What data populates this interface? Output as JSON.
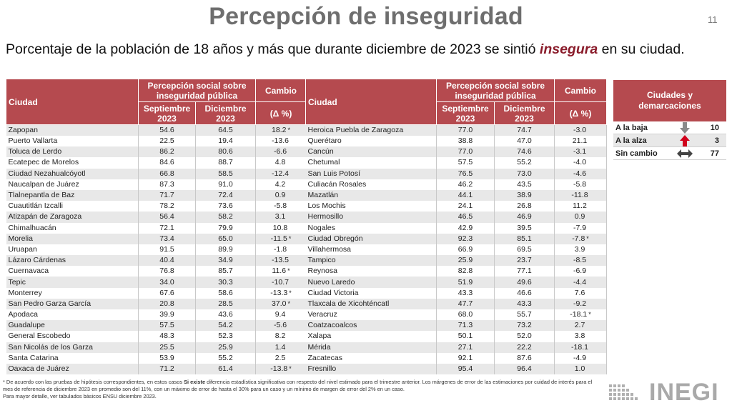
{
  "title": "Percepción de inseguridad",
  "page_number": "11",
  "subtitle": {
    "before": "Porcentaje de la población de 18 años y más que durante diciembre de 2023 se sintió ",
    "highlight": "insegura",
    "after": " en su ciudad."
  },
  "table_headers": {
    "city": "Ciudad",
    "perception_group": "Percepción social sobre inseguridad pública",
    "september": "Septiembre 2023",
    "december": "Diciembre 2023",
    "change": "Cambio",
    "change_unit": "(Δ %)"
  },
  "left_rows": [
    {
      "city": "Zapopan",
      "sep": "54.6",
      "dec": "64.5",
      "change": "18.2",
      "sig": "*"
    },
    {
      "city": "Puerto Vallarta",
      "sep": "22.5",
      "dec": "19.4",
      "change": "-13.6",
      "sig": ""
    },
    {
      "city": "Toluca de Lerdo",
      "sep": "86.2",
      "dec": "80.6",
      "change": "-6.6",
      "sig": ""
    },
    {
      "city": "Ecatepec de Morelos",
      "sep": "84.6",
      "dec": "88.7",
      "change": "4.8",
      "sig": ""
    },
    {
      "city": "Ciudad Nezahualcóyotl",
      "sep": "66.8",
      "dec": "58.5",
      "change": "-12.4",
      "sig": ""
    },
    {
      "city": "Naucalpan de Juárez",
      "sep": "87.3",
      "dec": "91.0",
      "change": "4.2",
      "sig": ""
    },
    {
      "city": "Tlalnepantla de Baz",
      "sep": "71.7",
      "dec": "72.4",
      "change": "0.9",
      "sig": ""
    },
    {
      "city": "Cuautitlán Izcalli",
      "sep": "78.2",
      "dec": "73.6",
      "change": "-5.8",
      "sig": ""
    },
    {
      "city": "Atizapán de Zaragoza",
      "sep": "56.4",
      "dec": "58.2",
      "change": "3.1",
      "sig": ""
    },
    {
      "city": "Chimalhuacán",
      "sep": "72.1",
      "dec": "79.9",
      "change": "10.8",
      "sig": ""
    },
    {
      "city": "Morelia",
      "sep": "73.4",
      "dec": "65.0",
      "change": "-11.5",
      "sig": "*"
    },
    {
      "city": "Uruapan",
      "sep": "91.5",
      "dec": "89.9",
      "change": "-1.8",
      "sig": ""
    },
    {
      "city": "Lázaro Cárdenas",
      "sep": "40.4",
      "dec": "34.9",
      "change": "-13.5",
      "sig": ""
    },
    {
      "city": "Cuernavaca",
      "sep": "76.8",
      "dec": "85.7",
      "change": "11.6",
      "sig": "*"
    },
    {
      "city": "Tepic",
      "sep": "34.0",
      "dec": "30.3",
      "change": "-10.7",
      "sig": ""
    },
    {
      "city": "Monterrey",
      "sep": "67.6",
      "dec": "58.6",
      "change": "-13.3",
      "sig": "*"
    },
    {
      "city": "San Pedro Garza García",
      "sep": "20.8",
      "dec": "28.5",
      "change": "37.0",
      "sig": "*"
    },
    {
      "city": "Apodaca",
      "sep": "39.9",
      "dec": "43.6",
      "change": "9.4",
      "sig": ""
    },
    {
      "city": "Guadalupe",
      "sep": "57.5",
      "dec": "54.2",
      "change": "-5.6",
      "sig": ""
    },
    {
      "city": "General Escobedo",
      "sep": "48.3",
      "dec": "52.3",
      "change": "8.2",
      "sig": ""
    },
    {
      "city": "San Nicolás de los Garza",
      "sep": "25.5",
      "dec": "25.9",
      "change": "1.4",
      "sig": ""
    },
    {
      "city": "Santa Catarina",
      "sep": "53.9",
      "dec": "55.2",
      "change": "2.5",
      "sig": ""
    },
    {
      "city": "Oaxaca de Juárez",
      "sep": "71.2",
      "dec": "61.4",
      "change": "-13.8",
      "sig": "*"
    }
  ],
  "right_rows": [
    {
      "city": "Heroica Puebla de Zaragoza",
      "sep": "77.0",
      "dec": "74.7",
      "change": "-3.0",
      "sig": ""
    },
    {
      "city": "Querétaro",
      "sep": "38.8",
      "dec": "47.0",
      "change": "21.1",
      "sig": ""
    },
    {
      "city": "Cancún",
      "sep": "77.0",
      "dec": "74.6",
      "change": "-3.1",
      "sig": ""
    },
    {
      "city": "Chetumal",
      "sep": "57.5",
      "dec": "55.2",
      "change": "-4.0",
      "sig": ""
    },
    {
      "city": "San Luis Potosí",
      "sep": "76.5",
      "dec": "73.0",
      "change": "-4.6",
      "sig": ""
    },
    {
      "city": "Culiacán Rosales",
      "sep": "46.2",
      "dec": "43.5",
      "change": "-5.8",
      "sig": ""
    },
    {
      "city": "Mazatlán",
      "sep": "44.1",
      "dec": "38.9",
      "change": "-11.8",
      "sig": ""
    },
    {
      "city": "Los Mochis",
      "sep": "24.1",
      "dec": "26.8",
      "change": "11.2",
      "sig": ""
    },
    {
      "city": "Hermosillo",
      "sep": "46.5",
      "dec": "46.9",
      "change": "0.9",
      "sig": ""
    },
    {
      "city": "Nogales",
      "sep": "42.9",
      "dec": "39.5",
      "change": "-7.9",
      "sig": ""
    },
    {
      "city": "Ciudad Obregón",
      "sep": "92.3",
      "dec": "85.1",
      "change": "-7.8",
      "sig": "*"
    },
    {
      "city": "Villahermosa",
      "sep": "66.9",
      "dec": "69.5",
      "change": "3.9",
      "sig": ""
    },
    {
      "city": "Tampico",
      "sep": "25.9",
      "dec": "23.7",
      "change": "-8.5",
      "sig": ""
    },
    {
      "city": "Reynosa",
      "sep": "82.8",
      "dec": "77.1",
      "change": "-6.9",
      "sig": ""
    },
    {
      "city": "Nuevo Laredo",
      "sep": "51.9",
      "dec": "49.6",
      "change": "-4.4",
      "sig": ""
    },
    {
      "city": "Ciudad Victoria",
      "sep": "43.3",
      "dec": "46.6",
      "change": "7.6",
      "sig": ""
    },
    {
      "city": "Tlaxcala de Xicohténcatl",
      "sep": "47.7",
      "dec": "43.3",
      "change": "-9.2",
      "sig": ""
    },
    {
      "city": "Veracruz",
      "sep": "68.0",
      "dec": "55.7",
      "change": "-18.1",
      "sig": "*"
    },
    {
      "city": "Coatzacoalcos",
      "sep": "71.3",
      "dec": "73.2",
      "change": "2.7",
      "sig": ""
    },
    {
      "city": "Xalapa",
      "sep": "50.1",
      "dec": "52.0",
      "change": "3.8",
      "sig": ""
    },
    {
      "city": "Mérida",
      "sep": "27.1",
      "dec": "22.2",
      "change": "-18.1",
      "sig": ""
    },
    {
      "city": "Zacatecas",
      "sep": "92.1",
      "dec": "87.6",
      "change": "-4.9",
      "sig": ""
    },
    {
      "city": "Fresnillo",
      "sep": "95.4",
      "dec": "96.4",
      "change": "1.0",
      "sig": ""
    }
  ],
  "summary": {
    "title": "Ciudades y demarcaciones",
    "rows": [
      {
        "label": "A la baja",
        "icon": "down-arrow-icon",
        "icon_color": "#8a8a8a",
        "value": "10"
      },
      {
        "label": "A la alza",
        "icon": "up-arrow-icon",
        "icon_color": "#d0021b",
        "value": "3"
      },
      {
        "label": "Sin cambio",
        "icon": "left-right-arrow-icon",
        "icon_color": "#444444",
        "value": "77"
      }
    ]
  },
  "footnote": {
    "line1_a": "* De acuerdo con las pruebas de hipótesis correspondientes, en estos casos ",
    "line1_b": "Si existe",
    "line1_c": " diferencia estadística significativa con respecto del nivel estimado para el trimestre anterior. Los márgenes de error de las estimaciones por cuidad de interés para el mes de referencia de diciembre 2023 en promedio son del 11%, con un máximo de error de hasta el 30% para un caso y un mínimo de margen de error del 2% en un caso.",
    "line2": "Para mayor detalle, ver tabulados básicos ENSU diciembre 2023."
  },
  "logo": {
    "text": "INEGI"
  },
  "colors": {
    "header_bg": "#b54a4f",
    "title_gray": "#6e6e6e",
    "highlight": "#8a1c2b"
  }
}
